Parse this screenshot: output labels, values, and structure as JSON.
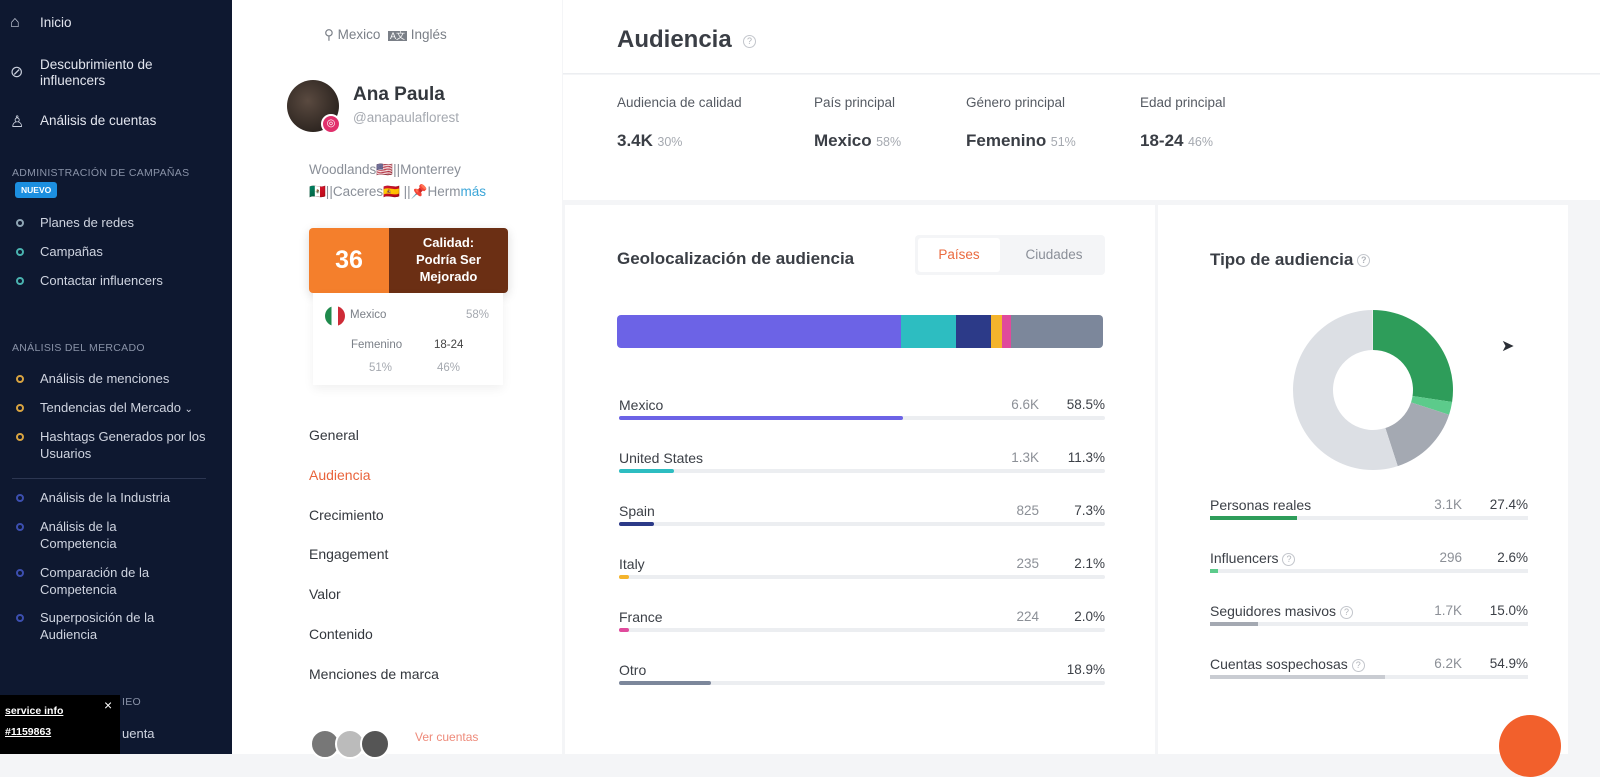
{
  "sidebar": {
    "items": [
      {
        "label": "Inicio",
        "icon": "home-icon"
      },
      {
        "label": "Descubrimiento de influencers",
        "icon": "compass-icon"
      },
      {
        "label": "Análisis de cuentas",
        "icon": "user-icon"
      }
    ],
    "campaigns_section": "ADMINISTRACIÓN DE CAMPAÑAS",
    "new_badge": "NUEVO",
    "campaigns": [
      "Planes de redes",
      "Campañas",
      "Contactar influencers"
    ],
    "market_section": "ANÁLISIS DEL MERCADO",
    "market": [
      "Análisis de menciones",
      "Tendencias del Mercado",
      "Hashtags Generados por los Usuarios"
    ],
    "industry": [
      "Análisis de la Industria",
      "Análisis de la Competencia",
      "Comparación de la Competencia",
      "Superposición de la Audiencia"
    ],
    "partial1": "IEO",
    "partial2": "uenta"
  },
  "service_info": {
    "title": "service info",
    "id": "#1159863",
    "close": "×"
  },
  "profile": {
    "location": "Mexico",
    "language": "Inglés",
    "name": "Ana Paula",
    "handle": "@anapaulaflorest",
    "bio_line1": "Woodlands🇺🇸||Monterrey",
    "bio_line2": "🇲🇽||Caceres🇪🇸 ||📌Herm",
    "more": "más",
    "score": "36",
    "quality": "Calidad: Podría Ser Mejorado",
    "mini": {
      "country": "Mexico",
      "country_pct": "58%",
      "gender": "Femenino",
      "gender_pct": "51%",
      "age": "18-24",
      "age_pct": "46%"
    },
    "nav": [
      "General",
      "Audiencia",
      "Crecimiento",
      "Engagement",
      "Valor",
      "Contenido",
      "Menciones de marca"
    ],
    "see_accounts": "Ver cuentas"
  },
  "header": {
    "title": "Audiencia"
  },
  "stats": [
    {
      "label": "Audiencia de calidad",
      "value": "3.4K",
      "sub": "30%"
    },
    {
      "label": "País principal",
      "value": "Mexico",
      "sub": "58%"
    },
    {
      "label": "Género principal",
      "value": "Femenino",
      "sub": "51%"
    },
    {
      "label": "Edad principal",
      "value": "18-24",
      "sub": "46%"
    }
  ],
  "geo": {
    "title": "Geolocalización de audiencia",
    "tabs": [
      "Países",
      "Ciudades"
    ],
    "rows": [
      {
        "label": "Mexico",
        "count": "6.6K",
        "pct": "58.5%",
        "value": 58.5,
        "color": "#6c63e6"
      },
      {
        "label": "United States",
        "count": "1.3K",
        "pct": "11.3%",
        "value": 11.3,
        "color": "#2dbdc1"
      },
      {
        "label": "Spain",
        "count": "825",
        "pct": "7.3%",
        "value": 7.3,
        "color": "#2c3a88"
      },
      {
        "label": "Italy",
        "count": "235",
        "pct": "2.1%",
        "value": 2.1,
        "color": "#f4b42c"
      },
      {
        "label": "France",
        "count": "224",
        "pct": "2.0%",
        "value": 2.0,
        "color": "#e04a9c"
      },
      {
        "label": "Otro",
        "count": "",
        "pct": "18.9%",
        "value": 18.9,
        "color": "#7c879b"
      }
    ]
  },
  "type": {
    "title": "Tipo de audiencia",
    "rows": [
      {
        "label": "Personas reales",
        "count": "3.1K",
        "pct": "27.4%",
        "value": 27.4,
        "color": "#2e9d5a",
        "help": false
      },
      {
        "label": "Influencers",
        "count": "296",
        "pct": "2.6%",
        "value": 2.6,
        "color": "#5ccb8b",
        "help": true
      },
      {
        "label": "Seguidores masivos",
        "count": "1.7K",
        "pct": "15.0%",
        "value": 15.0,
        "color": "#a4a9b2",
        "help": true
      },
      {
        "label": "Cuentas sospechosas",
        "count": "6.2K",
        "pct": "54.9%",
        "value": 54.9,
        "color": "#dcdfe4",
        "help": true
      }
    ]
  }
}
